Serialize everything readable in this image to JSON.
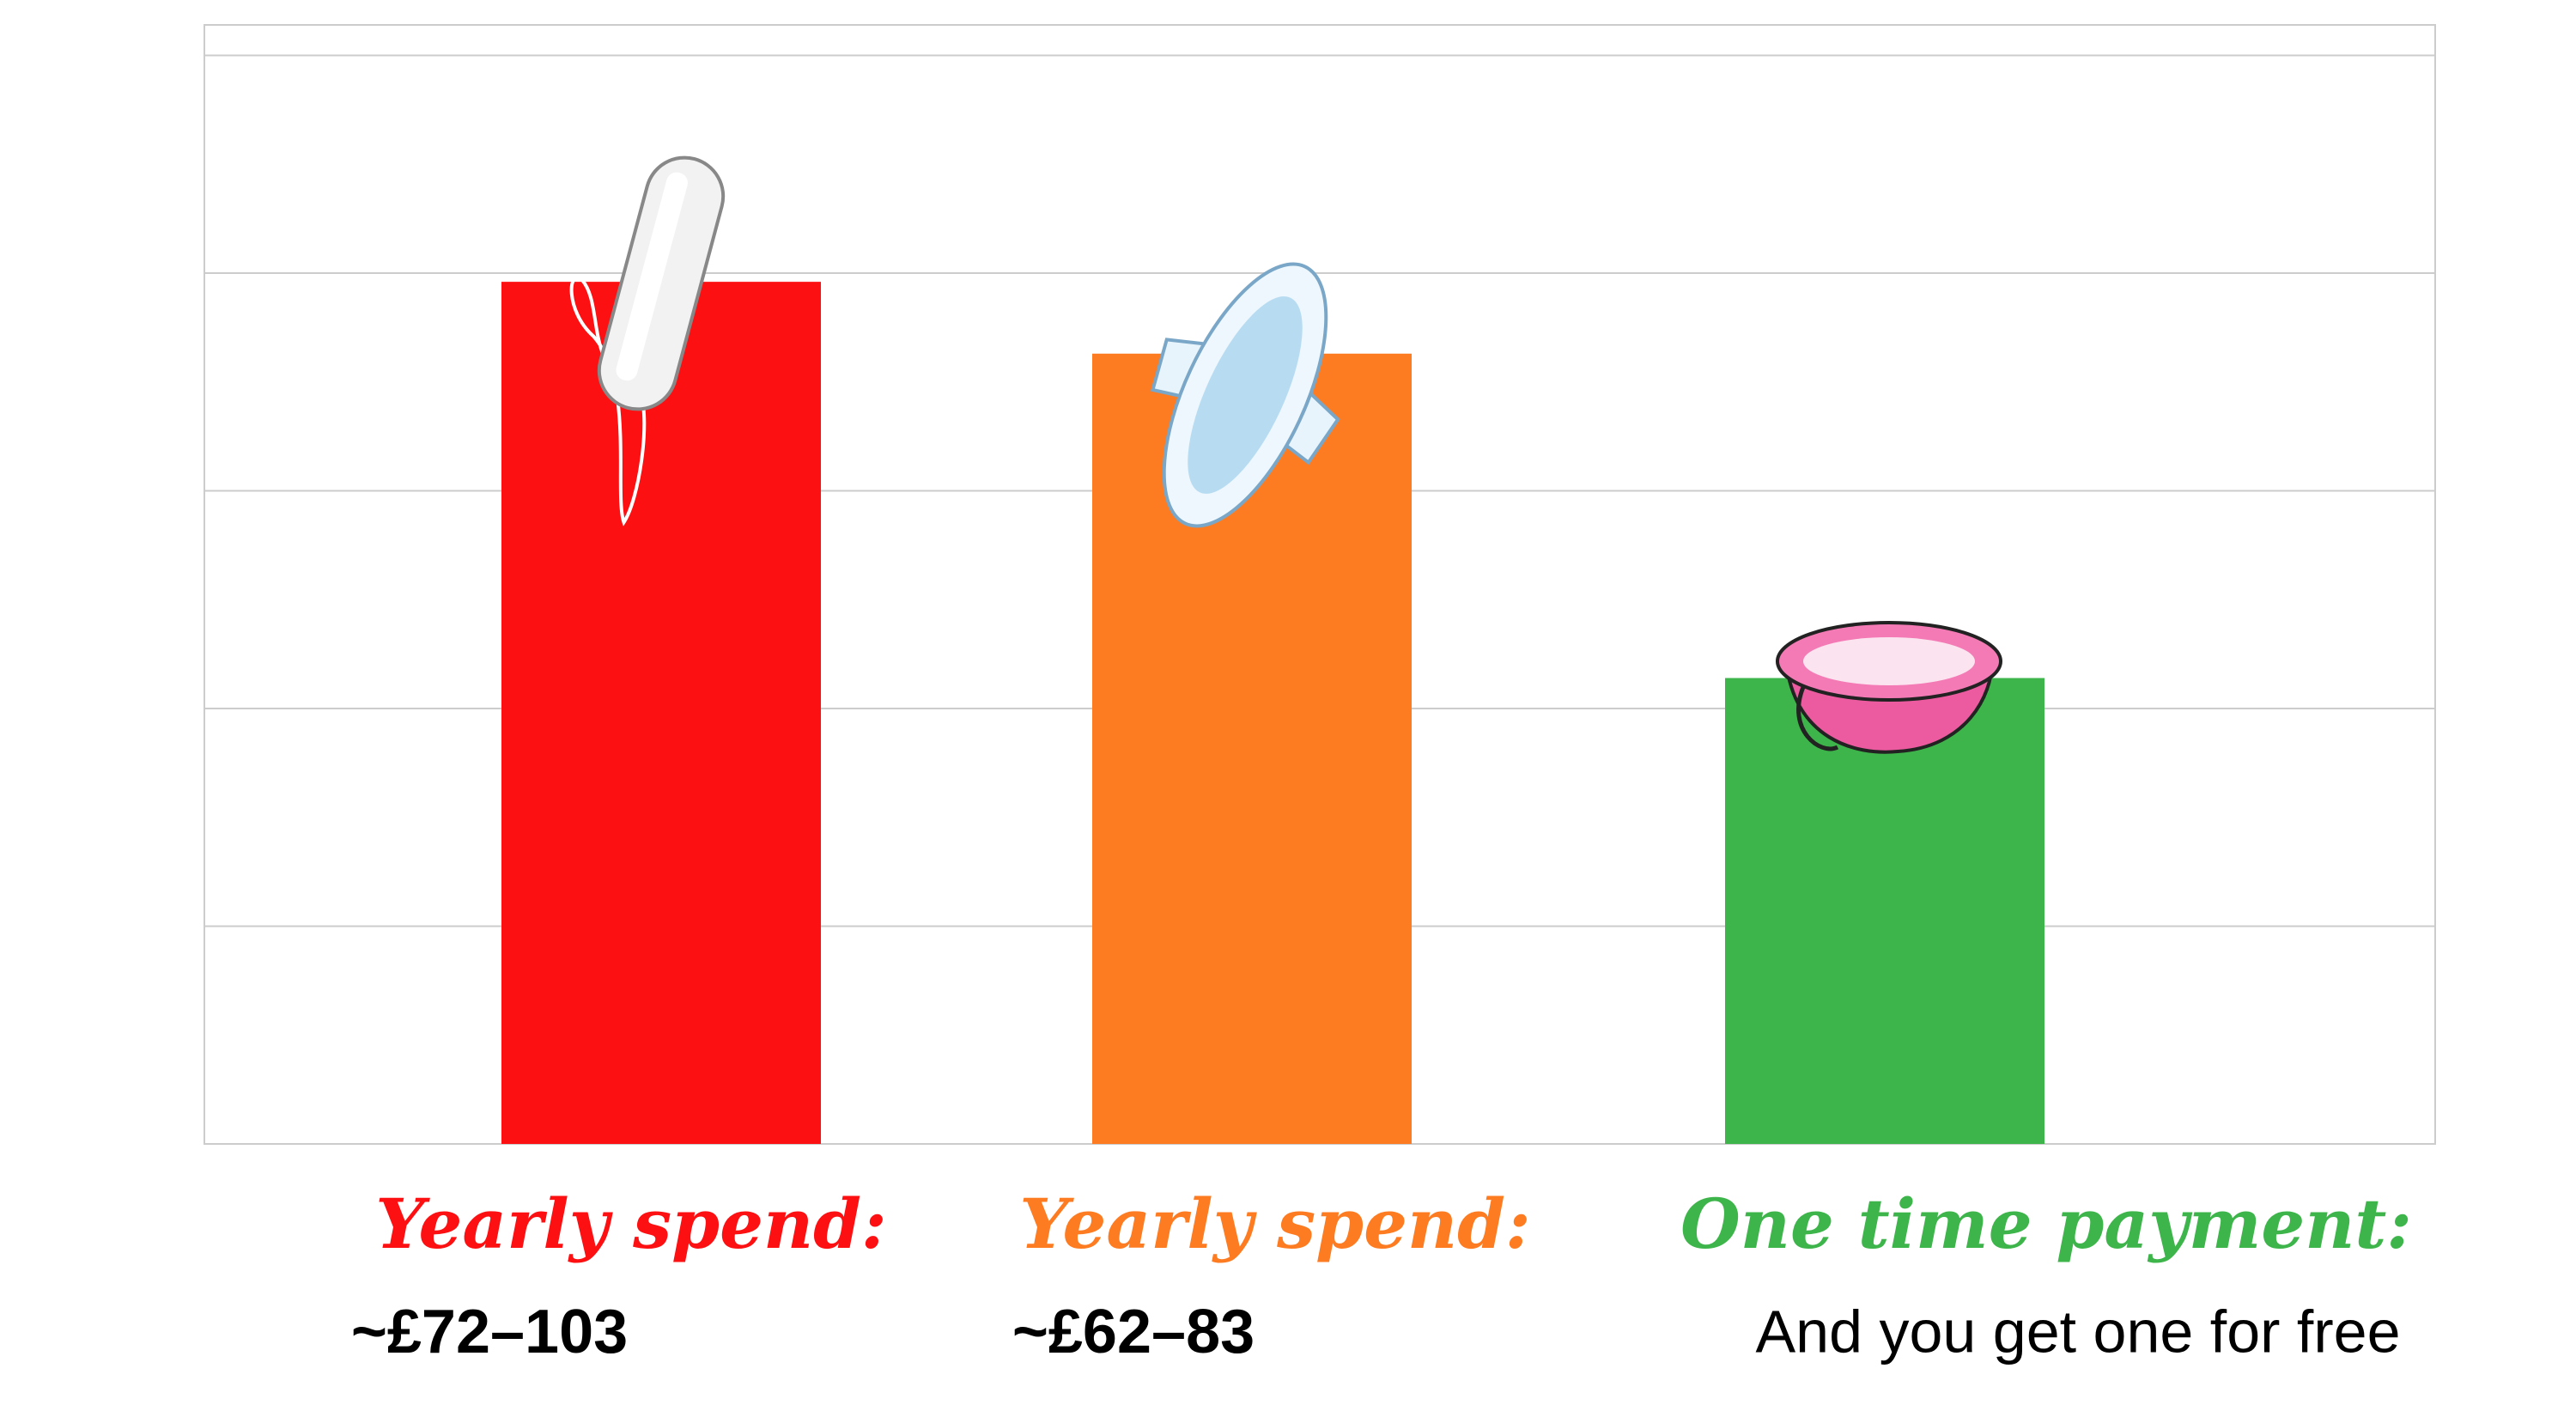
{
  "chart_data": {
    "type": "bar",
    "categories": [
      "Yearly spend:",
      "Yearly spend:",
      "One time payment:"
    ],
    "sublabels": [
      "~£72–103",
      "~£62–83",
      "And you get one for free"
    ],
    "values": [
      3.96,
      3.63,
      2.14
    ],
    "colors": [
      "#fc1012",
      "#fd7b21",
      "#3db54a"
    ],
    "ylim": [
      0,
      5.14
    ],
    "yticks": [
      0,
      1,
      2,
      3,
      4,
      5
    ],
    "grid": true
  }
}
